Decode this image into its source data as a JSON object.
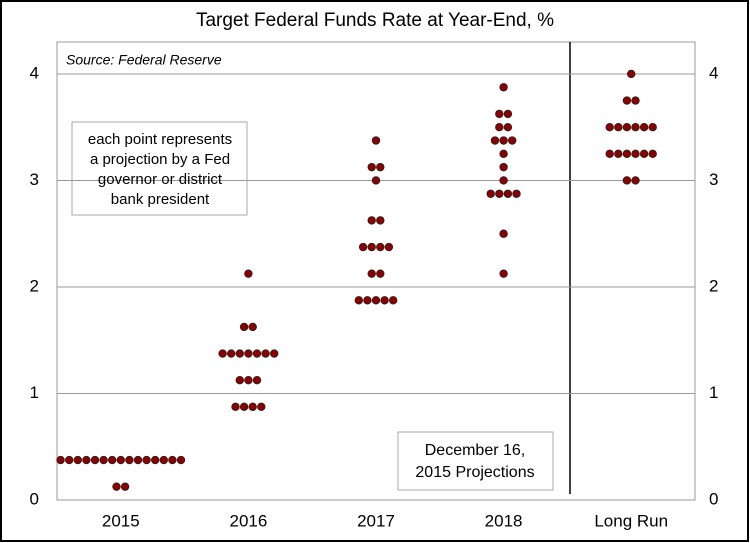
{
  "chart_data": {
    "type": "dot",
    "title": "Target Federal Funds Rate at Year-End, %",
    "source": "Source: Federal Reserve",
    "note": [
      "each point represents",
      "a projection by a Fed",
      "governor or district",
      "bank president"
    ],
    "annotation": [
      "December 16,",
      "2015 Projections"
    ],
    "categories": [
      "2015",
      "2016",
      "2017",
      "2018",
      "Long Run"
    ],
    "values": [
      [
        0.375,
        0.375,
        0.375,
        0.375,
        0.375,
        0.375,
        0.375,
        0.375,
        0.375,
        0.375,
        0.375,
        0.375,
        0.375,
        0.375,
        0.375,
        0.125,
        0.125
      ],
      [
        2.125,
        1.625,
        1.625,
        1.375,
        1.375,
        1.375,
        1.375,
        1.375,
        1.375,
        1.375,
        1.125,
        1.125,
        1.125,
        0.875,
        0.875,
        0.875,
        0.875
      ],
      [
        3.375,
        3.125,
        3.125,
        3.0,
        2.625,
        2.625,
        2.375,
        2.375,
        2.375,
        2.375,
        2.125,
        2.125,
        1.875,
        1.875,
        1.875,
        1.875,
        1.875
      ],
      [
        3.875,
        3.625,
        3.625,
        3.5,
        3.5,
        3.375,
        3.375,
        3.375,
        3.25,
        3.125,
        3.0,
        2.875,
        2.875,
        2.875,
        2.875,
        2.5,
        2.125
      ],
      [
        4.0,
        3.75,
        3.75,
        3.5,
        3.5,
        3.5,
        3.5,
        3.5,
        3.5,
        3.25,
        3.25,
        3.25,
        3.25,
        3.25,
        3.25,
        3.0,
        3.0
      ]
    ],
    "color": "#8b0000",
    "ylim": [
      0,
      4.3
    ],
    "yticks": [
      0,
      1,
      2,
      3,
      4
    ],
    "y2lim": [
      0,
      4.3
    ],
    "y2ticks": [
      0,
      1,
      2,
      3,
      4
    ],
    "grid": true
  }
}
